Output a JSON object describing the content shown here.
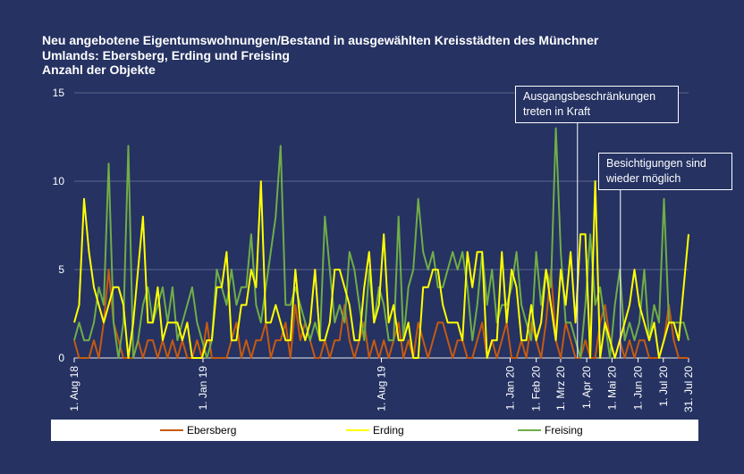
{
  "title_lines": [
    "Neu angebotene Eigentumswohnungen/Bestand in ausgewählten Kreisstädten des Münchner",
    "Umlands:  Ebersberg, Erding und Freising",
    "Anzahl  der Objekte"
  ],
  "annotations": [
    {
      "text": "Ausgangsbeschränkungen treten in Kraft",
      "date": "2020-03-21"
    },
    {
      "text": "Besichtigungen sind wieder möglich",
      "date": "2020-05-11"
    }
  ],
  "colors": {
    "background": "#253262",
    "ebersberg": "#c55a11",
    "erding": "#ffff00",
    "freising": "#70ad47",
    "grid": "#ffffff",
    "legend_bg": "#ffffff"
  },
  "chart_data": {
    "type": "line",
    "title": "Neu angebotene Eigentumswohnungen/Bestand in ausgewählten Kreisstädten des Münchner Umlands:  Ebersberg, Erding und Freising",
    "ylabel": "Anzahl  der Objekte",
    "xlabel": "",
    "ylim": [
      0,
      15
    ],
    "yticks": [
      0,
      5,
      10,
      15
    ],
    "x_range": [
      "2018-08-01",
      "2020-07-31"
    ],
    "x_ticks": [
      {
        "label": "1. Aug 18",
        "date": "2018-08-01"
      },
      {
        "label": "1. Jan 19",
        "date": "2019-01-01"
      },
      {
        "label": "1. Aug 19",
        "date": "2019-08-01"
      },
      {
        "label": "1. Jan 20",
        "date": "2020-01-01"
      },
      {
        "label": "1. Feb 20",
        "date": "2020-02-01"
      },
      {
        "label": "1. Mrz 20",
        "date": "2020-03-01"
      },
      {
        "label": "1. Apr 20",
        "date": "2020-04-01"
      },
      {
        "label": "1. Mai 20",
        "date": "2020-05-01"
      },
      {
        "label": "1. Jun 20",
        "date": "2020-06-01"
      },
      {
        "label": "1. Jul 20",
        "date": "2020-07-01"
      },
      {
        "label": "31. Jul 20",
        "date": "2020-07-31"
      }
    ],
    "legend_position": "bottom",
    "grid": "horizontal",
    "sampling": "weekly, 2018-08-01 to 2020-07-31",
    "series": [
      {
        "name": "Ebersberg",
        "values": [
          1,
          0,
          0,
          0,
          1,
          0,
          2,
          5,
          2,
          1,
          0,
          0,
          0,
          1,
          0,
          1,
          1,
          0,
          1,
          0,
          1,
          0,
          1,
          0,
          0,
          1,
          0,
          2,
          0,
          0,
          0,
          0,
          1,
          2,
          0,
          1,
          0,
          1,
          1,
          2,
          0,
          1,
          1,
          2,
          0,
          3,
          1,
          2,
          1,
          0,
          0,
          1,
          0,
          1,
          1,
          3,
          1,
          0,
          1,
          2,
          0,
          1,
          0,
          1,
          0,
          1,
          2,
          0,
          1,
          0,
          2,
          1,
          0,
          1,
          2,
          2,
          1,
          0,
          1,
          1,
          0,
          0,
          1,
          2,
          0,
          1,
          0,
          1,
          2,
          0,
          0,
          1,
          0,
          2,
          1,
          0,
          2,
          5,
          1,
          0,
          2,
          1,
          0,
          0,
          1,
          0,
          0,
          2,
          3,
          1,
          0,
          1,
          0,
          1,
          0,
          1,
          1,
          0,
          0,
          0,
          1,
          3,
          1,
          0,
          0,
          0
        ]
      },
      {
        "name": "Erding",
        "values": [
          2,
          3,
          9,
          6,
          4,
          3,
          2,
          3,
          4,
          4,
          3,
          0,
          2,
          5,
          8,
          2,
          2,
          4,
          1,
          2,
          2,
          2,
          1,
          2,
          0,
          0,
          0,
          1,
          1,
          4,
          4,
          6,
          1,
          1,
          3,
          3,
          5,
          4,
          10,
          2,
          2,
          3,
          2,
          1,
          1,
          5,
          2,
          1,
          2,
          5,
          1,
          1,
          2,
          5,
          5,
          4,
          3,
          1,
          1,
          4,
          6,
          2,
          3,
          7,
          2,
          3,
          1,
          1,
          2,
          0,
          0,
          4,
          4,
          5,
          5,
          3,
          2,
          2,
          2,
          1,
          6,
          4,
          6,
          6,
          0,
          1,
          1,
          6,
          2,
          5,
          4,
          1,
          1,
          3,
          1,
          2,
          5,
          3,
          1,
          5,
          3,
          6,
          2,
          7,
          7,
          0,
          10,
          0,
          2,
          1,
          0,
          1,
          2,
          3,
          5,
          3,
          2,
          1,
          2,
          0,
          1,
          2,
          2,
          1,
          4,
          7
        ]
      },
      {
        "name": "Freising",
        "values": [
          1,
          2,
          1,
          1,
          2,
          4,
          3,
          11,
          2,
          0,
          2,
          12,
          0,
          1,
          3,
          4,
          2,
          3,
          4,
          2,
          4,
          1,
          2,
          3,
          4,
          2,
          1,
          0,
          1,
          5,
          4,
          3,
          5,
          3,
          4,
          4,
          7,
          3,
          2,
          4,
          6,
          8,
          12,
          3,
          3,
          4,
          3,
          2,
          1,
          2,
          1,
          8,
          5,
          2,
          3,
          2,
          6,
          5,
          3,
          1,
          5,
          2,
          4,
          3,
          1,
          1,
          8,
          1,
          4,
          5,
          9,
          6,
          5,
          6,
          4,
          4,
          5,
          6,
          5,
          6,
          4,
          1,
          3,
          6,
          3,
          5,
          2,
          3,
          3,
          4,
          6,
          3,
          2,
          1,
          6,
          3,
          5,
          4,
          13,
          6,
          2,
          2,
          1,
          0,
          3,
          7,
          3,
          4,
          2,
          0,
          3,
          5,
          1,
          2,
          1,
          2,
          5,
          1,
          3,
          2,
          9,
          2,
          2,
          2,
          2,
          1
        ]
      }
    ]
  },
  "legend": {
    "items": [
      {
        "label": "Ebersberg"
      },
      {
        "label": "Erding"
      },
      {
        "label": "Freising"
      }
    ]
  }
}
